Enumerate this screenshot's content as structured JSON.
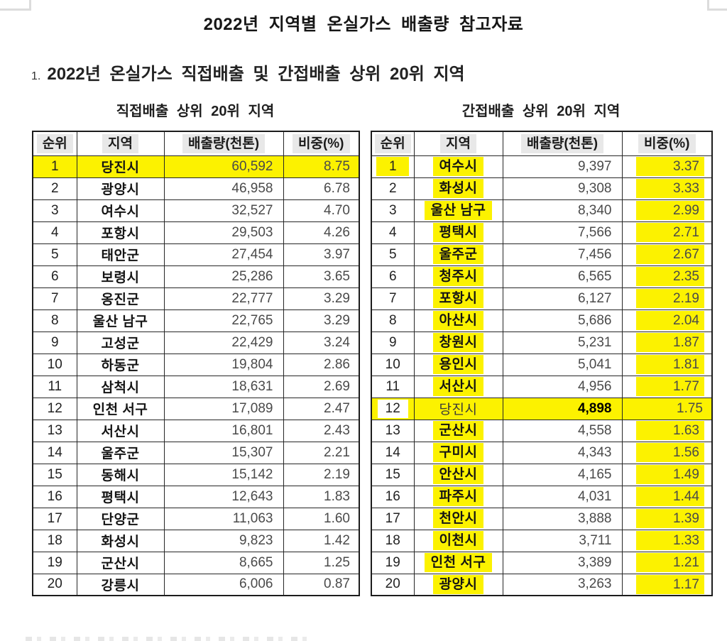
{
  "page": {
    "title": "2022년 지역별 온실가스 배출량 참고자료",
    "section_number": "1.",
    "section_title": "2022년 온실가스 직접배출 및 간접배출 상위 20위 지역"
  },
  "colors": {
    "highlight_yellow": "#fcf200",
    "header_label_box": "#e8e8e8"
  },
  "tables": [
    {
      "id": "direct-emissions",
      "caption": "직접배출 상위 20위 지역",
      "columns": [
        "순위",
        "지역",
        "배출량(천톤)",
        "비중(%)"
      ],
      "rows": [
        {
          "rank": "1",
          "region": "당진시",
          "value": "60,592",
          "pct": "8.75",
          "row_hl": true
        },
        {
          "rank": "2",
          "region": "광양시",
          "value": "46,958",
          "pct": "6.78"
        },
        {
          "rank": "3",
          "region": "여수시",
          "value": "32,527",
          "pct": "4.70"
        },
        {
          "rank": "4",
          "region": "포항시",
          "value": "29,503",
          "pct": "4.26"
        },
        {
          "rank": "5",
          "region": "태안군",
          "value": "27,454",
          "pct": "3.97"
        },
        {
          "rank": "6",
          "region": "보령시",
          "value": "25,286",
          "pct": "3.65"
        },
        {
          "rank": "7",
          "region": "옹진군",
          "value": "22,777",
          "pct": "3.29"
        },
        {
          "rank": "8",
          "region": "울산 남구",
          "value": "22,765",
          "pct": "3.29"
        },
        {
          "rank": "9",
          "region": "고성군",
          "value": "22,429",
          "pct": "3.24"
        },
        {
          "rank": "10",
          "region": "하동군",
          "value": "19,804",
          "pct": "2.86"
        },
        {
          "rank": "11",
          "region": "삼척시",
          "value": "18,631",
          "pct": "2.69"
        },
        {
          "rank": "12",
          "region": "인천 서구",
          "value": "17,089",
          "pct": "2.47"
        },
        {
          "rank": "13",
          "region": "서산시",
          "value": "16,801",
          "pct": "2.43"
        },
        {
          "rank": "14",
          "region": "울주군",
          "value": "15,307",
          "pct": "2.21"
        },
        {
          "rank": "15",
          "region": "동해시",
          "value": "15,142",
          "pct": "2.19"
        },
        {
          "rank": "16",
          "region": "평택시",
          "value": "12,643",
          "pct": "1.83"
        },
        {
          "rank": "17",
          "region": "단양군",
          "value": "11,063",
          "pct": "1.60"
        },
        {
          "rank": "18",
          "region": "화성시",
          "value": "9,823",
          "pct": "1.42"
        },
        {
          "rank": "19",
          "region": "군산시",
          "value": "8,665",
          "pct": "1.25"
        },
        {
          "rank": "20",
          "region": "강릉시",
          "value": "6,006",
          "pct": "0.87"
        }
      ]
    },
    {
      "id": "indirect-emissions",
      "caption": "간접배출 상위 20위 지역",
      "columns": [
        "순위",
        "지역",
        "배출량(천톤)",
        "비중(%)"
      ],
      "rows": [
        {
          "rank": "1",
          "region": "여수시",
          "value": "9,397",
          "pct": "3.37",
          "rank_hl": true,
          "region_hl": true,
          "pct_hl": true
        },
        {
          "rank": "2",
          "region": "화성시",
          "value": "9,308",
          "pct": "3.33",
          "region_hl": true,
          "pct_hl": true
        },
        {
          "rank": "3",
          "region": "울산 남구",
          "value": "8,340",
          "pct": "2.99",
          "region_hl": true,
          "pct_hl": true
        },
        {
          "rank": "4",
          "region": "평택시",
          "value": "7,566",
          "pct": "2.71",
          "region_hl": true,
          "pct_hl": true
        },
        {
          "rank": "5",
          "region": "울주군",
          "value": "7,456",
          "pct": "2.67",
          "region_hl": true,
          "pct_hl": true
        },
        {
          "rank": "6",
          "region": "청주시",
          "value": "6,565",
          "pct": "2.35",
          "region_hl": true,
          "pct_hl": true
        },
        {
          "rank": "7",
          "region": "포항시",
          "value": "6,127",
          "pct": "2.19",
          "region_hl": true,
          "pct_hl": true
        },
        {
          "rank": "8",
          "region": "아산시",
          "value": "5,686",
          "pct": "2.04",
          "region_hl": true,
          "pct_hl": true
        },
        {
          "rank": "9",
          "region": "창원시",
          "value": "5,231",
          "pct": "1.87",
          "region_hl": true,
          "pct_hl": true
        },
        {
          "rank": "10",
          "region": "용인시",
          "value": "5,041",
          "pct": "1.81",
          "region_hl": true,
          "pct_hl": true
        },
        {
          "rank": "11",
          "region": "서산시",
          "value": "4,956",
          "pct": "1.77",
          "region_hl": true,
          "pct_hl": true
        },
        {
          "rank": "12",
          "region": "당진시",
          "value": "4,898",
          "pct": "1.75",
          "row_hl": true,
          "rank_white_box": true,
          "value_bold": true,
          "region_normal": true
        },
        {
          "rank": "13",
          "region": "군산시",
          "value": "4,558",
          "pct": "1.63",
          "region_hl": true,
          "pct_hl": true
        },
        {
          "rank": "14",
          "region": "구미시",
          "value": "4,343",
          "pct": "1.56",
          "region_hl": true,
          "pct_hl": true
        },
        {
          "rank": "15",
          "region": "안산시",
          "value": "4,165",
          "pct": "1.49",
          "region_hl": true,
          "pct_hl": true
        },
        {
          "rank": "16",
          "region": "파주시",
          "value": "4,031",
          "pct": "1.44",
          "region_hl": true,
          "pct_hl": true
        },
        {
          "rank": "17",
          "region": "천안시",
          "value": "3,888",
          "pct": "1.39",
          "region_hl": true,
          "pct_hl": true
        },
        {
          "rank": "18",
          "region": "이천시",
          "value": "3,711",
          "pct": "1.33",
          "region_hl": true,
          "pct_hl": true
        },
        {
          "rank": "19",
          "region": "인천 서구",
          "value": "3,389",
          "pct": "1.21",
          "region_hl": true,
          "pct_hl": true
        },
        {
          "rank": "20",
          "region": "광양시",
          "value": "3,263",
          "pct": "1.17",
          "region_hl": true,
          "pct_hl": true
        }
      ]
    }
  ]
}
